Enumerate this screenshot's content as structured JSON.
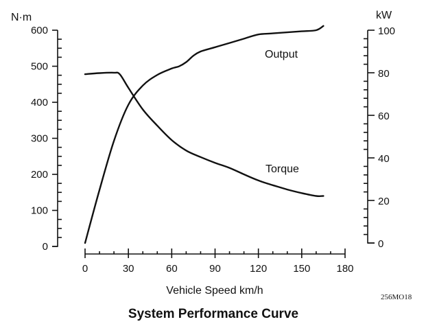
{
  "chart_data": {
    "type": "line",
    "title": "System Performance Curve",
    "xlabel": "Vehicle Speed km/h",
    "ylabel_left": "N·m",
    "ylabel_right": "kW",
    "xlim": [
      0,
      180
    ],
    "ylim_left": [
      0,
      600
    ],
    "ylim_right": [
      0,
      100
    ],
    "x_ticks": [
      "0",
      "30",
      "60",
      "90",
      "120",
      "150",
      "180"
    ],
    "y_left_ticks": [
      "0",
      "100",
      "200",
      "300",
      "400",
      "500",
      "600"
    ],
    "y_right_ticks": [
      "0",
      "20",
      "40",
      "60",
      "80",
      "100"
    ],
    "grid": false,
    "series": [
      {
        "name": "Torque",
        "axis": "left",
        "x": [
          0,
          10,
          20,
          24,
          30,
          40,
          50,
          60,
          70,
          80,
          90,
          100,
          110,
          120,
          130,
          140,
          150,
          160,
          165
        ],
        "y": [
          478,
          481,
          482,
          478,
          440,
          380,
          335,
          295,
          266,
          248,
          232,
          218,
          200,
          183,
          170,
          158,
          148,
          140,
          140
        ]
      },
      {
        "name": "Output",
        "axis": "right",
        "x": [
          0,
          10,
          20,
          30,
          40,
          50,
          60,
          65,
          70,
          75,
          80,
          90,
          100,
          110,
          120,
          130,
          140,
          150,
          160,
          165
        ],
        "y": [
          0,
          25,
          48,
          65,
          74,
          79,
          82,
          83,
          85,
          88,
          90,
          92,
          94,
          96,
          98,
          98.5,
          99,
          99.5,
          100,
          102
        ]
      }
    ],
    "annotations": [
      "Output",
      "Torque",
      "256MO18"
    ]
  }
}
